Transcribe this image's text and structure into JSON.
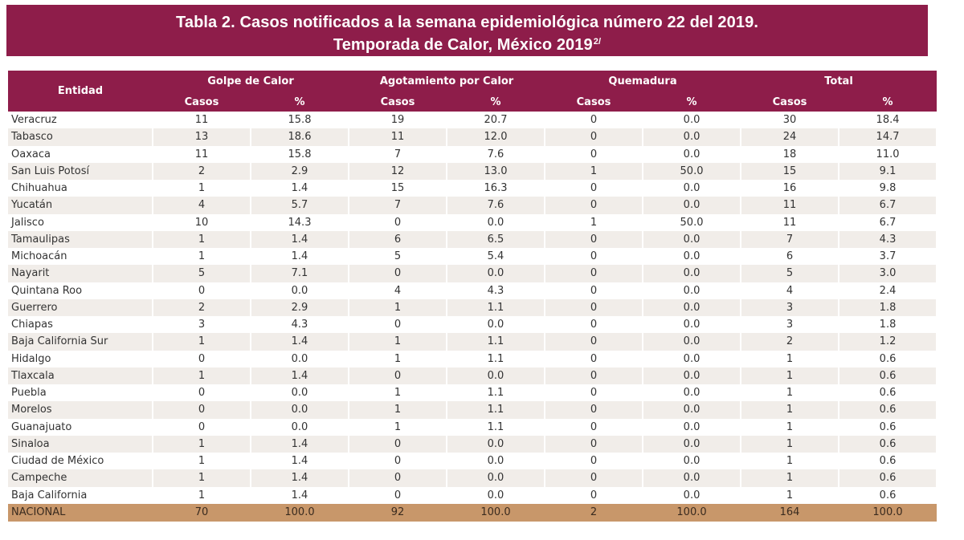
{
  "title": {
    "line1": "Tabla 2. Casos notificados  a la semana epidemiológica número 22 del 2019.",
    "line2": "Temporada de Calor, México 2019",
    "line2_sup": "2/"
  },
  "header": {
    "entidad": "Entidad",
    "groups": [
      "Golpe de Calor",
      "Agotamiento por Calor",
      "Quemadura",
      "Total"
    ],
    "sub": [
      "Casos",
      "%",
      "Casos",
      "%",
      "Casos",
      "%",
      "Casos",
      "%"
    ]
  },
  "rows": [
    [
      "Veracruz",
      "11",
      "15.8",
      "19",
      "20.7",
      "0",
      "0.0",
      "30",
      "18.4"
    ],
    [
      "Tabasco",
      "13",
      "18.6",
      "11",
      "12.0",
      "0",
      "0.0",
      "24",
      "14.7"
    ],
    [
      "Oaxaca",
      "11",
      "15.8",
      "7",
      "7.6",
      "0",
      "0.0",
      "18",
      "11.0"
    ],
    [
      "San Luis Potosí",
      "2",
      "2.9",
      "12",
      "13.0",
      "1",
      "50.0",
      "15",
      "9.1"
    ],
    [
      "Chihuahua",
      "1",
      "1.4",
      "15",
      "16.3",
      "0",
      "0.0",
      "16",
      "9.8"
    ],
    [
      "Yucatán",
      "4",
      "5.7",
      "7",
      "7.6",
      "0",
      "0.0",
      "11",
      "6.7"
    ],
    [
      "Jalisco",
      "10",
      "14.3",
      "0",
      "0.0",
      "1",
      "50.0",
      "11",
      "6.7"
    ],
    [
      "Tamaulipas",
      "1",
      "1.4",
      "6",
      "6.5",
      "0",
      "0.0",
      "7",
      "4.3"
    ],
    [
      "Michoacán",
      "1",
      "1.4",
      "5",
      "5.4",
      "0",
      "0.0",
      "6",
      "3.7"
    ],
    [
      "Nayarit",
      "5",
      "7.1",
      "0",
      "0.0",
      "0",
      "0.0",
      "5",
      "3.0"
    ],
    [
      "Quintana Roo",
      "0",
      "0.0",
      "4",
      "4.3",
      "0",
      "0.0",
      "4",
      "2.4"
    ],
    [
      "Guerrero",
      "2",
      "2.9",
      "1",
      "1.1",
      "0",
      "0.0",
      "3",
      "1.8"
    ],
    [
      "Chiapas",
      "3",
      "4.3",
      "0",
      "0.0",
      "0",
      "0.0",
      "3",
      "1.8"
    ],
    [
      "Baja California Sur",
      "1",
      "1.4",
      "1",
      "1.1",
      "0",
      "0.0",
      "2",
      "1.2"
    ],
    [
      "Hidalgo",
      "0",
      "0.0",
      "1",
      "1.1",
      "0",
      "0.0",
      "1",
      "0.6"
    ],
    [
      "Tlaxcala",
      "1",
      "1.4",
      "0",
      "0.0",
      "0",
      "0.0",
      "1",
      "0.6"
    ],
    [
      "Puebla",
      "0",
      "0.0",
      "1",
      "1.1",
      "0",
      "0.0",
      "1",
      "0.6"
    ],
    [
      "Morelos",
      "0",
      "0.0",
      "1",
      "1.1",
      "0",
      "0.0",
      "1",
      "0.6"
    ],
    [
      "Guanajuato",
      "0",
      "0.0",
      "1",
      "1.1",
      "0",
      "0.0",
      "1",
      "0.6"
    ],
    [
      "Sinaloa",
      "1",
      "1.4",
      "0",
      "0.0",
      "0",
      "0.0",
      "1",
      "0.6"
    ],
    [
      "Ciudad de México",
      "1",
      "1.4",
      "0",
      "0.0",
      "0",
      "0.0",
      "1",
      "0.6"
    ],
    [
      "Campeche",
      "1",
      "1.4",
      "0",
      "0.0",
      "0",
      "0.0",
      "1",
      "0.6"
    ],
    [
      "Baja California",
      "1",
      "1.4",
      "0",
      "0.0",
      "0",
      "0.0",
      "1",
      "0.6"
    ]
  ],
  "total_row": [
    "NACIONAL",
    "70",
    "100.0",
    "92",
    "100.0",
    "2",
    "100.0",
    "164",
    "100.0"
  ],
  "colors": {
    "header_bg": "#8e1d4a",
    "stripe": "#f1ede9",
    "total_bg": "#c8976a"
  }
}
